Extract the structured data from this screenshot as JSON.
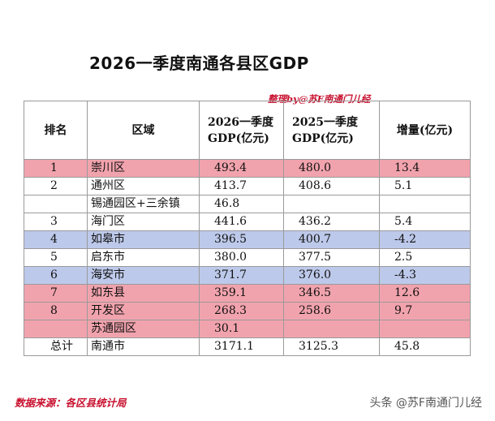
{
  "title": "2026一季度南通各县区GDP",
  "watermark": "整理by@苏F南通门儿经",
  "table": {
    "headers": {
      "rank": "排名",
      "region": "区域",
      "gdp2026": "2026一季度GDP(亿元)",
      "gdp2025": "2025一季度GDP(亿元)",
      "increase": "增量(亿元)"
    },
    "rows": [
      {
        "rank": "1",
        "region": "崇川区",
        "gdp2026": "493.4",
        "gdp2025": "480.0",
        "increase": "13.4",
        "highlight": "pink"
      },
      {
        "rank": "2",
        "region": "通州区",
        "gdp2026": "413.7",
        "gdp2025": "408.6",
        "increase": "5.1",
        "highlight": "none"
      },
      {
        "rank": "",
        "region": "锡通园区+三余镇",
        "gdp2026": "46.8",
        "gdp2025": "",
        "increase": "",
        "highlight": "none"
      },
      {
        "rank": "3",
        "region": "海门区",
        "gdp2026": "441.6",
        "gdp2025": "436.2",
        "increase": "5.4",
        "highlight": "none"
      },
      {
        "rank": "4",
        "region": "如皋市",
        "gdp2026": "396.5",
        "gdp2025": "400.7",
        "increase": "-4.2",
        "highlight": "blue"
      },
      {
        "rank": "5",
        "region": "启东市",
        "gdp2026": "380.0",
        "gdp2025": "377.5",
        "increase": "2.5",
        "highlight": "none"
      },
      {
        "rank": "6",
        "region": "海安市",
        "gdp2026": "371.7",
        "gdp2025": "376.0",
        "increase": "-4.3",
        "highlight": "blue"
      },
      {
        "rank": "7",
        "region": "如东县",
        "gdp2026": "359.1",
        "gdp2025": "346.5",
        "increase": "12.6",
        "highlight": "pink"
      },
      {
        "rank": "8",
        "region": "开发区",
        "gdp2026": "268.3",
        "gdp2025": "258.6",
        "increase": "9.7",
        "highlight": "pink"
      },
      {
        "rank": "",
        "region": "苏通园区",
        "gdp2026": "30.1",
        "gdp2025": "",
        "increase": "",
        "highlight": "pink"
      },
      {
        "rank": "总计",
        "region": "南通市",
        "gdp2026": "3171.1",
        "gdp2025": "3125.3",
        "increase": "45.8",
        "highlight": "none"
      }
    ]
  },
  "footer": "数据来源：各区县统计局",
  "brand": "头条 @苏F南通门儿经",
  "colors": {
    "pink": "#f1a3ad",
    "blue": "#bdc9ea",
    "accent_red": "#c8102e"
  }
}
